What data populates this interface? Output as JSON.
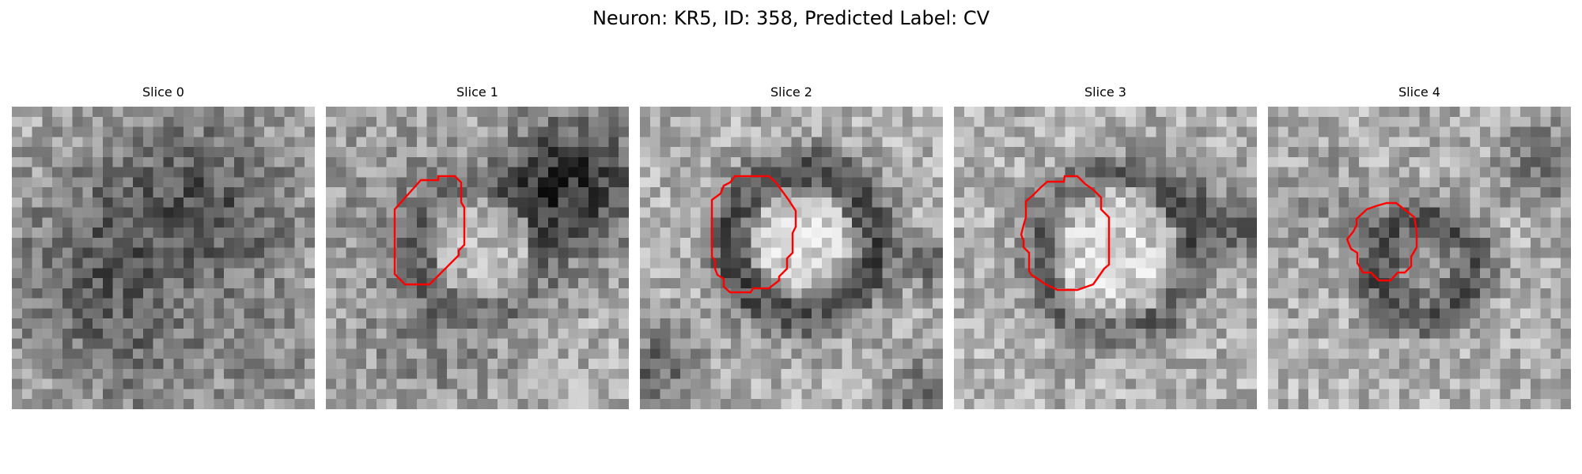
{
  "figure": {
    "title": "Neuron: KR5, ID: 358, Predicted Label: CV",
    "contour_color": "#ff0000",
    "slices": [
      {
        "label": "Slice 0",
        "has_contour": false,
        "seed": 11
      },
      {
        "label": "Slice 1",
        "has_contour": true,
        "seed": 23
      },
      {
        "label": "Slice 2",
        "has_contour": true,
        "seed": 37
      },
      {
        "label": "Slice 3",
        "has_contour": true,
        "seed": 41
      },
      {
        "label": "Slice 4",
        "has_contour": true,
        "seed": 59
      }
    ]
  }
}
